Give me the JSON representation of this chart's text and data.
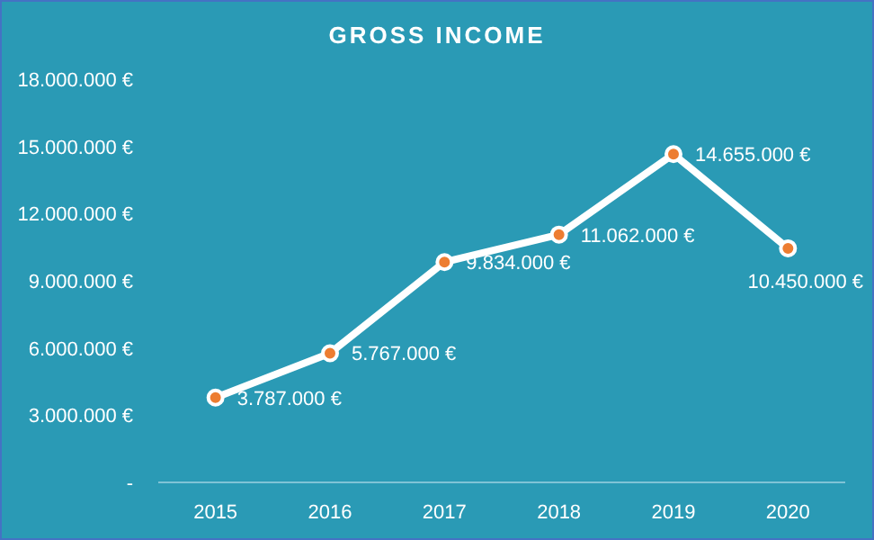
{
  "chart_data": {
    "type": "line",
    "title": "GROSS INCOME",
    "categories": [
      "2015",
      "2016",
      "2017",
      "2018",
      "2019",
      "2020"
    ],
    "series": [
      {
        "color": "#ffffff",
        "values": [
          3787000,
          5767000,
          9834000,
          11062000,
          14655000,
          10450000
        ],
        "value_labels": [
          "3.787.000 €",
          "5.767.000 €",
          "9.834.000 €",
          "11.062.000 €",
          "14.655.000 €",
          "10.450.000 €"
        ]
      }
    ],
    "ylim": [
      0,
      18000000
    ],
    "yticks": [
      {
        "value": 0,
        "label": "-"
      },
      {
        "value": 3000000,
        "label": "3.000.000 €"
      },
      {
        "value": 6000000,
        "label": "6.000.000 €"
      },
      {
        "value": 9000000,
        "label": "9.000.000 €"
      },
      {
        "value": 12000000,
        "label": "12.000.000 €"
      },
      {
        "value": 15000000,
        "label": "15.000.000 €"
      },
      {
        "value": 18000000,
        "label": "18.000.000 €"
      }
    ],
    "grid": false,
    "marker": "circle",
    "line_style": "solid"
  }
}
